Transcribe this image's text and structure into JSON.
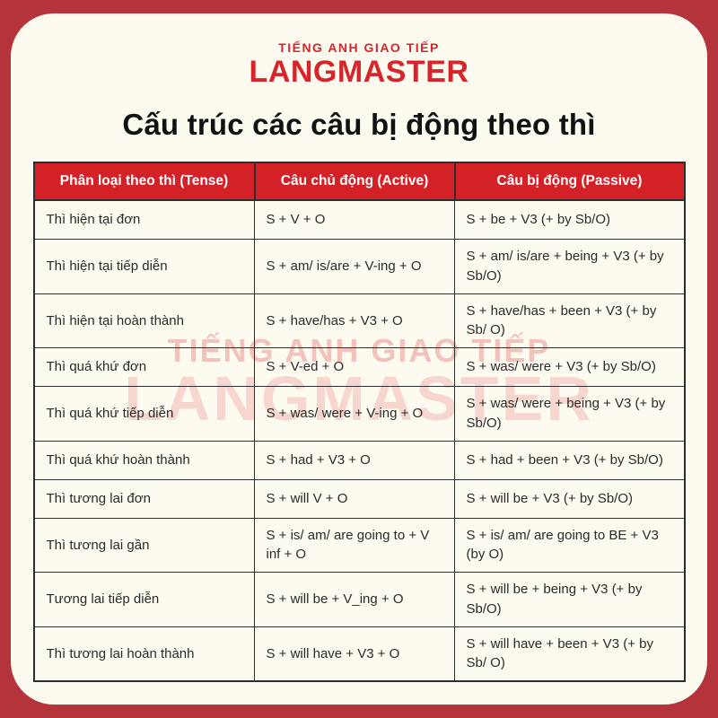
{
  "page": {
    "background_color": "#fdfaf0",
    "frame_color": "#b5333a"
  },
  "logo": {
    "tagline": "TIẾNG ANH GIAO TIẾP",
    "brand": "LANGMASTER",
    "color": "#d6252b"
  },
  "title": "Cấu trúc các câu bị động theo thì",
  "watermark": {
    "line1": "TIẾNG ANH GIAO TIẾP",
    "line2": "LANGMASTER"
  },
  "table": {
    "header_bg": "#d42127",
    "columns": [
      "Phân loại theo thì (Tense)",
      "Câu chủ động (Active)",
      "Câu bị động (Passive)"
    ],
    "rows": [
      {
        "tense": "Thì hiện tại đơn",
        "active": "S + V + O",
        "passive": "S + be + V3 (+ by Sb/O)"
      },
      {
        "tense": "Thì hiện tại tiếp diễn",
        "active": "S + am/ is/are + V-ing + O",
        "passive": "S + am/ is/are + being + V3 (+ by Sb/O)"
      },
      {
        "tense": "Thì hiện tại hoàn thành",
        "active": "S + have/has + V3 + O",
        "passive": "S + have/has + been + V3 (+ by Sb/ O)"
      },
      {
        "tense": "Thì quá khứ đơn",
        "active": "S + V-ed + O",
        "passive": "S + was/ were + V3 (+ by Sb/O)"
      },
      {
        "tense": "Thì quá khứ tiếp diễn",
        "active": "S + was/ were + V-ing + O",
        "passive": "S + was/ were + being + V3 (+ by Sb/O)"
      },
      {
        "tense": "Thì quá khứ hoàn thành",
        "active": "S + had + V3 + O",
        "passive": "S + had + been + V3 (+ by Sb/O)"
      },
      {
        "tense": "Thì tương lai đơn",
        "active": "S + will V + O",
        "passive": "S + will be + V3 (+ by Sb/O)"
      },
      {
        "tense": "Thì tương lai gần",
        "active": "S + is/ am/ are going to + V inf + O",
        "passive": "S + is/ am/ are going to BE + V3 (by O)"
      },
      {
        "tense": "Tương lai tiếp diễn",
        "active": "S + will be + V_ing + O",
        "passive": "S + will be + being + V3 (+ by Sb/O)"
      },
      {
        "tense": "Thì tương lai hoàn thành",
        "active": "S + will have + V3 + O",
        "passive": "S + will have + been + V3 (+ by Sb/ O)"
      }
    ]
  }
}
